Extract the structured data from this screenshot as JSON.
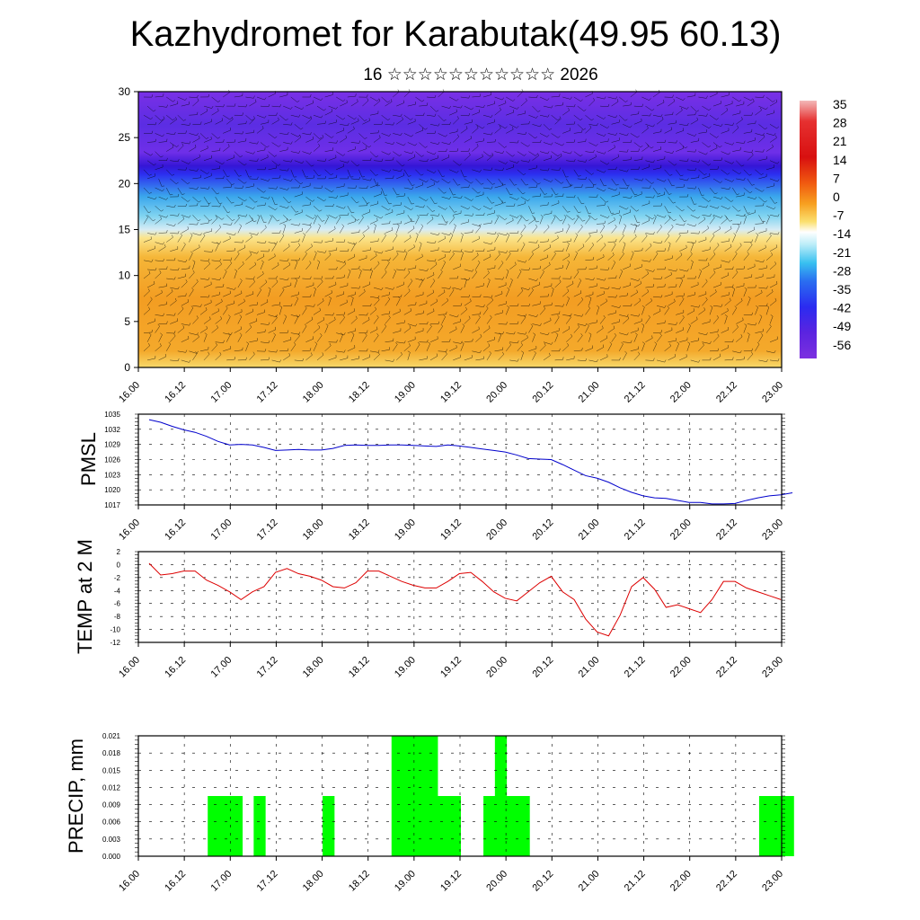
{
  "title": "Kazhydromet for Karabutak(49.95 60.13)",
  "subtitle": "16 ☆☆☆☆☆☆☆☆☆☆☆ 2026",
  "colors": {
    "pmsl_line": "#0000cc",
    "temp_line": "#dd0000",
    "precip_bar": "#00ff00",
    "grid": "#000000"
  },
  "chart_data": [
    {
      "type": "heatmap",
      "name": "cross-section",
      "description_units": "temperature colour field with wind barbs",
      "ylim": [
        0,
        30
      ],
      "yticks": [
        0,
        5,
        10,
        15,
        20,
        25,
        30
      ],
      "xticks": [
        "16.00",
        "16.12",
        "17.00",
        "17.12",
        "18.00",
        "18.12",
        "19.00",
        "19.12",
        "20.00",
        "20.12",
        "21.00",
        "21.12",
        "22.00",
        "22.12",
        "23.00"
      ],
      "colorbar": {
        "labels": [
          "35",
          "28",
          "21",
          "14",
          "7",
          "0",
          "-7",
          "-14",
          "-21",
          "-28",
          "-35",
          "-42",
          "-49",
          "-56"
        ],
        "min": -63,
        "max": 42
      }
    },
    {
      "type": "line",
      "name": "pmsl",
      "ylabel": "PMSL",
      "ylim": [
        1017,
        1035
      ],
      "yticks": [
        "1035",
        "1032",
        "1029",
        "1026",
        "1023",
        "1020",
        "1017"
      ],
      "xticks": [
        "16.00",
        "16.12",
        "17.00",
        "17.12",
        "18.00",
        "18.12",
        "19.00",
        "19.12",
        "20.00",
        "20.12",
        "21.00",
        "21.12",
        "22.00",
        "22.12",
        "23.00"
      ],
      "x": [
        0,
        1,
        2,
        3,
        4,
        5,
        6,
        7,
        8,
        9,
        10,
        11,
        12,
        13,
        14,
        15,
        16,
        17,
        18,
        19,
        20,
        21,
        22,
        23,
        24,
        25,
        26,
        27,
        28,
        29,
        30,
        31,
        32,
        33,
        34,
        35,
        36,
        37,
        38,
        39,
        40,
        41,
        42,
        43,
        44,
        45,
        46,
        47,
        48,
        49,
        50,
        51,
        52,
        53,
        54,
        55,
        56
      ],
      "values": [
        1033.9,
        1033.4,
        1032.6,
        1031.9,
        1031.4,
        1030.6,
        1029.6,
        1028.9,
        1029.0,
        1028.9,
        1028.4,
        1027.8,
        1027.9,
        1028.0,
        1027.9,
        1027.9,
        1028.2,
        1028.8,
        1028.9,
        1028.8,
        1028.8,
        1028.9,
        1028.9,
        1028.8,
        1028.7,
        1028.6,
        1028.9,
        1028.7,
        1028.4,
        1028.1,
        1027.8,
        1027.5,
        1026.9,
        1026.2,
        1026.1,
        1026.0,
        1025.0,
        1023.9,
        1022.8,
        1022.3,
        1021.5,
        1020.4,
        1019.5,
        1018.8,
        1018.4,
        1018.3,
        1017.9,
        1017.5,
        1017.5,
        1017.2,
        1017.2,
        1017.3,
        1017.9,
        1018.4,
        1018.8,
        1019.0,
        1019.4
      ]
    },
    {
      "type": "line",
      "name": "temp2m",
      "ylabel": "TEMP at 2 M",
      "ylim": [
        -12,
        2
      ],
      "yticks": [
        "2",
        "0",
        "-2",
        "-4",
        "-6",
        "-8",
        "-10",
        "-12"
      ],
      "xticks": [
        "16.00",
        "16.12",
        "17.00",
        "17.12",
        "18.00",
        "18.12",
        "19.00",
        "19.12",
        "20.00",
        "20.12",
        "21.00",
        "21.12",
        "22.00",
        "22.12",
        "23.00"
      ],
      "x": [
        0,
        1,
        2,
        3,
        4,
        5,
        6,
        7,
        8,
        9,
        10,
        11,
        12,
        13,
        14,
        15,
        16,
        17,
        18,
        19,
        20,
        21,
        22,
        23,
        24,
        25,
        26,
        27,
        28,
        29,
        30,
        31,
        32,
        33,
        34,
        35,
        36,
        37,
        38,
        39,
        40,
        41,
        42,
        43,
        44,
        45,
        46,
        47,
        48,
        49,
        50,
        51,
        52,
        53,
        54,
        55
      ],
      "values": [
        0.2,
        -1.6,
        -1.4,
        -1.0,
        -1.0,
        -2.4,
        -3.2,
        -4.2,
        -5.4,
        -4.2,
        -3.4,
        -1.2,
        -0.6,
        -1.4,
        -1.8,
        -2.4,
        -3.4,
        -3.6,
        -2.8,
        -1.0,
        -1.0,
        -1.8,
        -2.6,
        -3.2,
        -3.6,
        -3.6,
        -2.6,
        -1.4,
        -1.2,
        -2.6,
        -4.2,
        -5.2,
        -5.6,
        -4.2,
        -2.8,
        -1.8,
        -4.2,
        -5.4,
        -8.4,
        -10.4,
        -11.0,
        -7.8,
        -3.4,
        -2.0,
        -3.8,
        -6.6,
        -6.2,
        -6.8,
        -7.4,
        -5.4,
        -2.6,
        -2.6,
        -3.6,
        -4.2,
        -4.8,
        -5.4
      ]
    },
    {
      "type": "bar",
      "name": "precip",
      "ylabel": "PRECIP, mm",
      "ylim": [
        0,
        0.021
      ],
      "yticks": [
        "0.021",
        "0.018",
        "0.015",
        "0.012",
        "0.009",
        "0.006",
        "0.003",
        "0.000"
      ],
      "xticks": [
        "16.00",
        "16.12",
        "17.00",
        "17.12",
        "18.00",
        "18.12",
        "19.00",
        "19.12",
        "20.00",
        "20.12",
        "21.00",
        "21.12",
        "22.00",
        "22.12",
        "23.00"
      ],
      "bars": [
        {
          "x0": 6,
          "x1": 9,
          "value": 0.0105
        },
        {
          "x0": 10,
          "x1": 11,
          "value": 0.0105
        },
        {
          "x0": 16,
          "x1": 17,
          "value": 0.0105
        },
        {
          "x0": 22,
          "x1": 26,
          "value": 0.021
        },
        {
          "x0": 26,
          "x1": 28,
          "value": 0.0105
        },
        {
          "x0": 30,
          "x1": 31,
          "value": 0.0105
        },
        {
          "x0": 31,
          "x1": 32,
          "value": 0.021
        },
        {
          "x0": 32,
          "x1": 34,
          "value": 0.0105
        },
        {
          "x0": 54,
          "x1": 57,
          "value": 0.0105
        }
      ]
    }
  ]
}
